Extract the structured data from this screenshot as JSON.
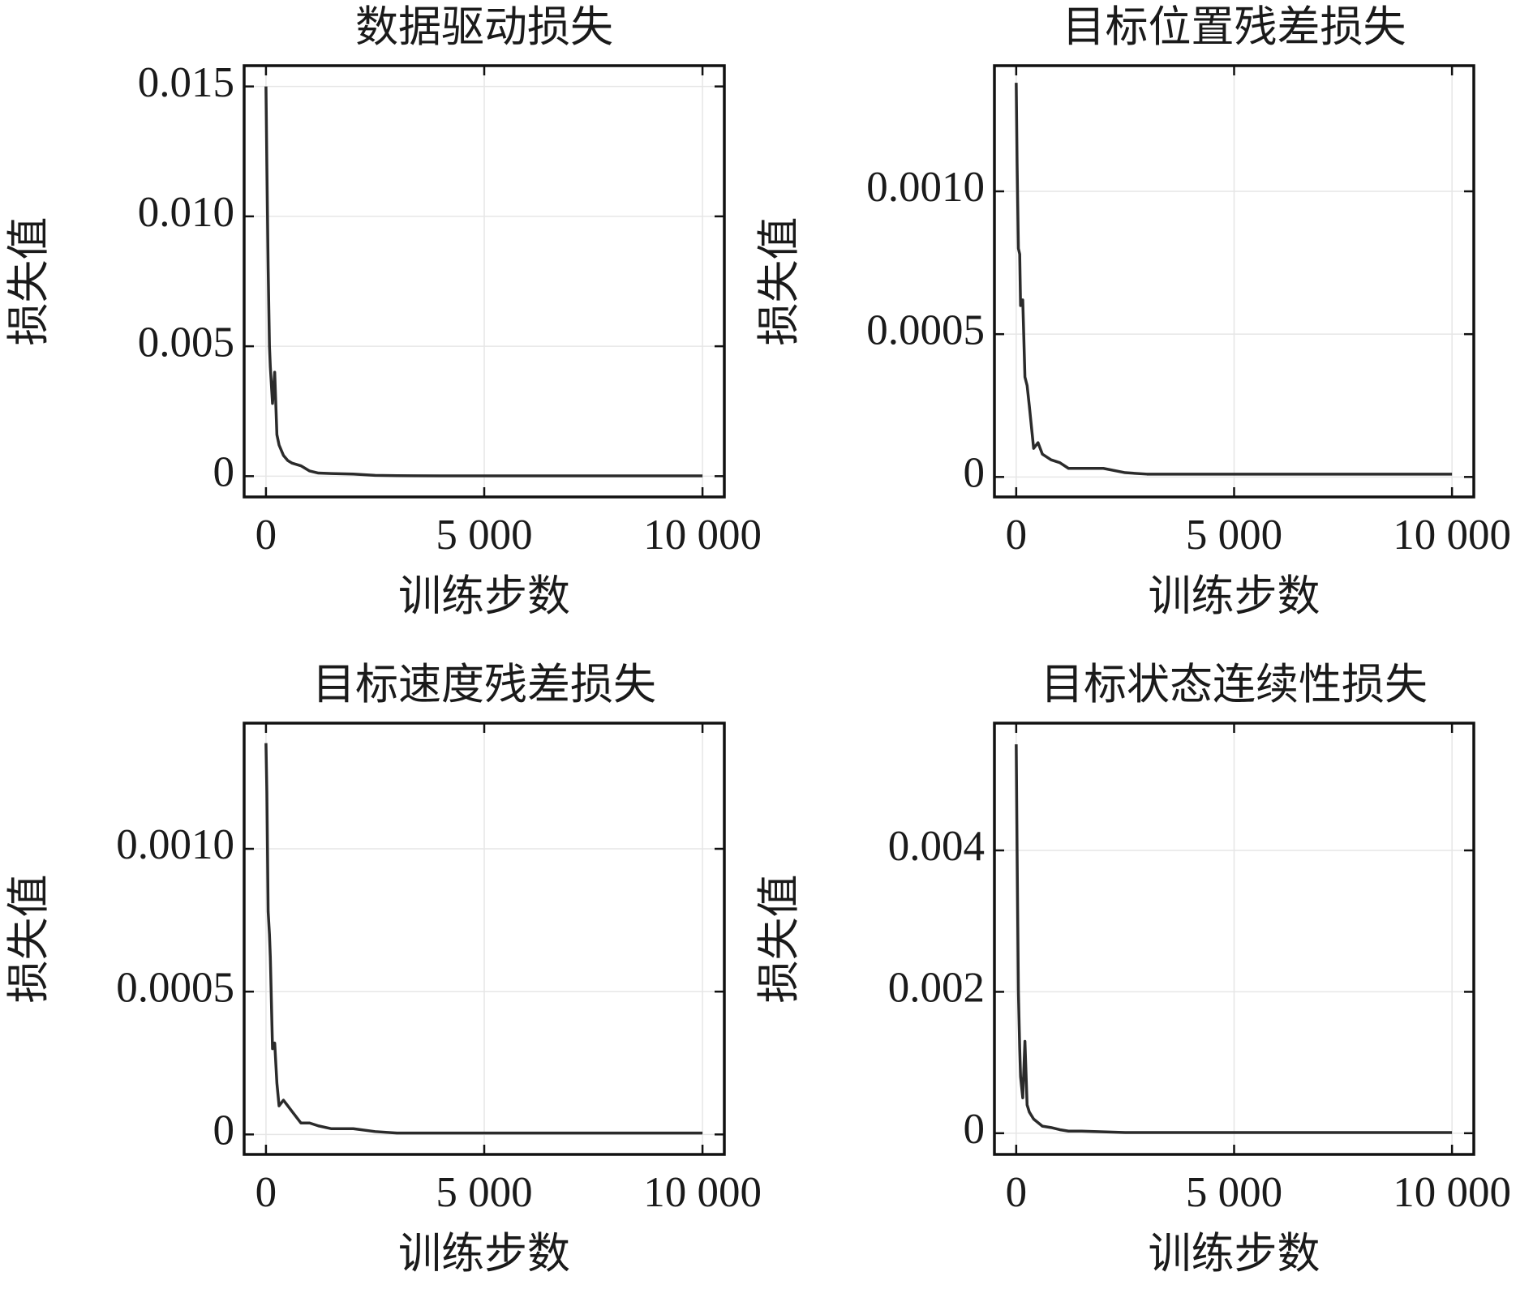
{
  "chart_data": [
    {
      "type": "line",
      "title": "数据驱动损失",
      "xlabel": "训练步数",
      "ylabel": "损失值",
      "grid": true,
      "xlim": [
        -500,
        10500
      ],
      "ylim": [
        -0.0008,
        0.0158
      ],
      "xticks": [
        0,
        {
          "value": 5000,
          "label": "5 000"
        },
        {
          "value": 10000,
          "label": "10 000"
        }
      ],
      "yticks": [
        0,
        0.005,
        {
          "value": 0.01,
          "label": "0.010"
        },
        0.015
      ],
      "x": [
        0,
        20,
        50,
        80,
        100,
        150,
        200,
        250,
        300,
        400,
        500,
        600,
        800,
        1000,
        1200,
        1500,
        2000,
        2500,
        3000,
        4000,
        5000,
        6000,
        7000,
        8000,
        9000,
        10000
      ],
      "series": [
        {
          "name": "数据驱动损失",
          "color": "#2b2b2b",
          "values": [
            0.015,
            0.012,
            0.008,
            0.005,
            0.0042,
            0.0028,
            0.004,
            0.0016,
            0.0012,
            0.0008,
            0.0006,
            0.0005,
            0.0004,
            0.0002,
            0.00012,
            0.0001,
            8e-05,
            3e-05,
            2e-05,
            1e-05,
            1e-05,
            1e-05,
            1e-05,
            1e-05,
            1e-05,
            1e-05
          ]
        }
      ]
    },
    {
      "type": "line",
      "title": "目标位置残差损失",
      "xlabel": "训练步数",
      "ylabel": "损失值",
      "grid": true,
      "xlim": [
        -500,
        10500
      ],
      "ylim": [
        -7e-05,
        0.00144
      ],
      "xticks": [
        0,
        {
          "value": 5000,
          "label": "5 000"
        },
        {
          "value": 10000,
          "label": "10 000"
        }
      ],
      "yticks": [
        0,
        0.0005,
        {
          "value": 0.001,
          "label": "0.0010"
        }
      ],
      "x": [
        0,
        20,
        50,
        80,
        100,
        150,
        200,
        250,
        300,
        400,
        500,
        600,
        800,
        1000,
        1200,
        1500,
        2000,
        2500,
        3000,
        4000,
        5000,
        6000,
        7000,
        8000,
        9000,
        10000
      ],
      "series": [
        {
          "name": "目标位置残差损失",
          "color": "#2b2b2b",
          "values": [
            0.00138,
            0.0011,
            0.0008,
            0.00078,
            0.0006,
            0.00062,
            0.00035,
            0.00032,
            0.00025,
            0.0001,
            0.00012,
            8e-05,
            6e-05,
            5e-05,
            3e-05,
            3e-05,
            3e-05,
            1.5e-05,
            1e-05,
            1e-05,
            1e-05,
            1e-05,
            1e-05,
            1e-05,
            1e-05,
            1e-05
          ]
        }
      ]
    },
    {
      "type": "line",
      "title": "目标速度残差损失",
      "xlabel": "训练步数",
      "ylabel": "损失值",
      "grid": true,
      "xlim": [
        -500,
        10500
      ],
      "ylim": [
        -7e-05,
        0.00144
      ],
      "xticks": [
        0,
        {
          "value": 5000,
          "label": "5 000"
        },
        {
          "value": 10000,
          "label": "10 000"
        }
      ],
      "yticks": [
        0,
        0.0005,
        {
          "value": 0.001,
          "label": "0.0010"
        }
      ],
      "x": [
        0,
        20,
        50,
        80,
        100,
        150,
        200,
        250,
        300,
        400,
        500,
        600,
        800,
        1000,
        1200,
        1500,
        2000,
        2500,
        3000,
        4000,
        5000,
        6000,
        7000,
        8000,
        9000,
        10000
      ],
      "series": [
        {
          "name": "目标速度残差损失",
          "color": "#2b2b2b",
          "values": [
            0.00137,
            0.0012,
            0.00078,
            0.0007,
            0.00062,
            0.0003,
            0.00032,
            0.00018,
            0.0001,
            0.00012,
            0.0001,
            8e-05,
            4e-05,
            4e-05,
            3e-05,
            2e-05,
            2e-05,
            1e-05,
            5e-06,
            5e-06,
            5e-06,
            5e-06,
            5e-06,
            5e-06,
            5e-06,
            5e-06
          ]
        }
      ]
    },
    {
      "type": "line",
      "title": "目标状态连续性损失",
      "xlabel": "训练步数",
      "ylabel": "损失值",
      "grid": true,
      "xlim": [
        -500,
        10500
      ],
      "ylim": [
        -0.0003,
        0.0058
      ],
      "xticks": [
        0,
        {
          "value": 5000,
          "label": "5 000"
        },
        {
          "value": 10000,
          "label": "10 000"
        }
      ],
      "yticks": [
        0,
        0.002,
        0.004
      ],
      "x": [
        0,
        20,
        50,
        80,
        100,
        150,
        200,
        250,
        300,
        400,
        500,
        600,
        800,
        1000,
        1200,
        1500,
        2000,
        2500,
        3000,
        4000,
        5000,
        6000,
        7000,
        8000,
        9000,
        10000
      ],
      "series": [
        {
          "name": "目标状态连续性损失",
          "color": "#2b2b2b",
          "values": [
            0.0055,
            0.004,
            0.002,
            0.0012,
            0.0008,
            0.0005,
            0.0013,
            0.0004,
            0.0003,
            0.0002,
            0.00015,
            0.0001,
            8e-05,
            5e-05,
            3e-05,
            3e-05,
            2e-05,
            1e-05,
            1e-05,
            1e-05,
            1e-05,
            1e-05,
            1e-05,
            1e-05,
            1e-05,
            1e-05
          ]
        }
      ]
    }
  ]
}
